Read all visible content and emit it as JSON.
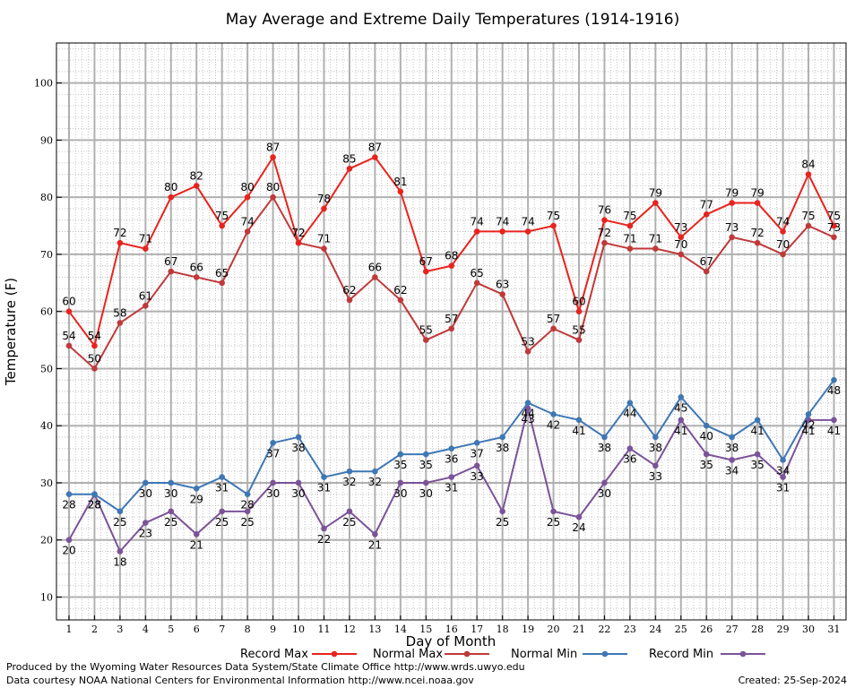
{
  "chart_data": {
    "type": "line",
    "title": "May Average and Extreme Daily Temperatures (1914-1916)",
    "xlabel": "Day of Month",
    "ylabel": "Temperature (F)",
    "ylim": [
      6,
      107
    ],
    "yticks": [
      10,
      20,
      30,
      40,
      50,
      60,
      70,
      80,
      90,
      100
    ],
    "x": [
      1,
      2,
      3,
      4,
      5,
      6,
      7,
      8,
      9,
      10,
      11,
      12,
      13,
      14,
      15,
      16,
      17,
      18,
      19,
      20,
      21,
      22,
      23,
      24,
      25,
      26,
      27,
      28,
      29,
      30,
      31
    ],
    "grid": true,
    "legend_position": "bottom",
    "series": [
      {
        "name": "Record Max",
        "color": "#e8231e",
        "values": [
          60,
          54,
          72,
          71,
          80,
          82,
          75,
          80,
          87,
          72,
          78,
          85,
          87,
          81,
          67,
          68,
          74,
          74,
          74,
          75,
          60,
          76,
          75,
          79,
          73,
          77,
          79,
          79,
          74,
          84,
          75
        ]
      },
      {
        "name": "Normal Max",
        "color": "#c0393a",
        "values": [
          54,
          50,
          58,
          61,
          67,
          66,
          65,
          74,
          80,
          72,
          71,
          62,
          66,
          62,
          55,
          57,
          65,
          63,
          53,
          57,
          55,
          72,
          71,
          71,
          70,
          67,
          73,
          72,
          70,
          75,
          73
        ]
      },
      {
        "name": "Normal Min",
        "color": "#3f77b5",
        "values": [
          28,
          28,
          25,
          30,
          30,
          29,
          31,
          28,
          37,
          38,
          31,
          32,
          32,
          35,
          35,
          36,
          37,
          38,
          44,
          42,
          41,
          38,
          44,
          38,
          45,
          40,
          38,
          41,
          34,
          42,
          48
        ]
      },
      {
        "name": "Record Min",
        "color": "#7b5398",
        "values": [
          20,
          28,
          18,
          23,
          25,
          21,
          25,
          25,
          30,
          30,
          22,
          25,
          21,
          30,
          30,
          31,
          33,
          25,
          43,
          25,
          24,
          30,
          36,
          33,
          41,
          35,
          34,
          35,
          31,
          41,
          41
        ]
      }
    ]
  },
  "footer": {
    "producer": "Produced by the Wyoming Water Resources Data System/State Climate Office http://www.wrds.uwyo.edu",
    "courtesy": "Data courtesy NOAA National Centers for Environmental Information http://www.ncei.noaa.gov",
    "created": "Created:  25-Sep-2024"
  }
}
